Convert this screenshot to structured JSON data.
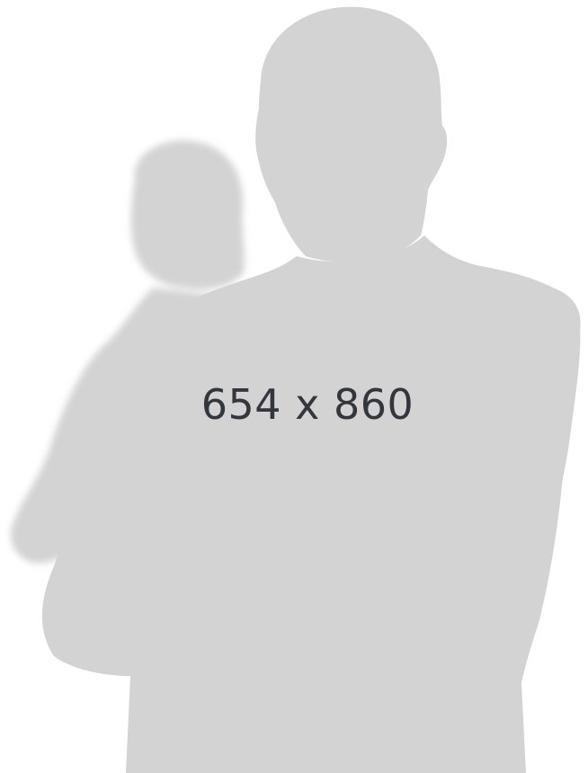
{
  "placeholder": {
    "size_text": "654 x 860",
    "silhouette_color": "#d3d3d3",
    "background_color": "#ffffff",
    "text_color": "#33363d",
    "icon": "parent-with-child-silhouette"
  }
}
